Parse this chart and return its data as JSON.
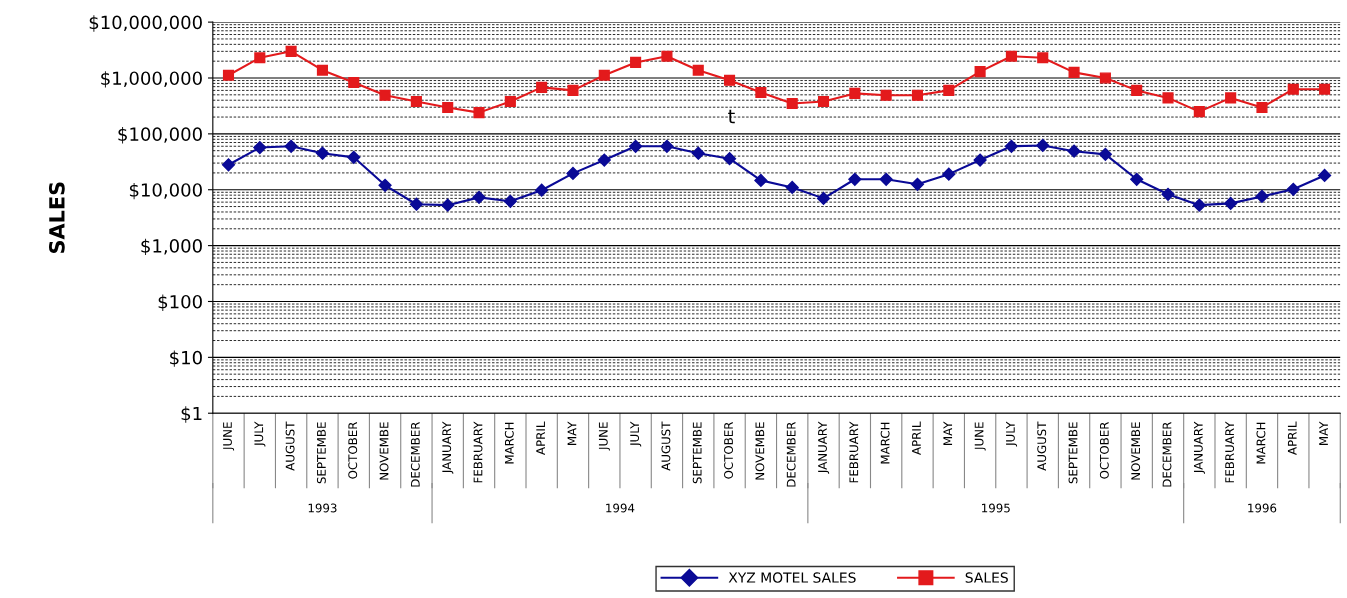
{
  "chart_data": {
    "type": "line",
    "ylabel": "SALES",
    "categories": [
      "JUNE",
      "JULY",
      "AUGUST",
      "SEPTEMBE",
      "OCTOBER",
      "NOVEMBE",
      "DECEMBER",
      "JANUARY",
      "FEBRUARY",
      "MARCH",
      "APRIL",
      "MAY",
      "JUNE",
      "JULY",
      "AUGUST",
      "SEPTEMBE",
      "OCTOBER",
      "NOVEMBE",
      "DECEMBER",
      "JANUARY",
      "FEBRUARY",
      "MARCH",
      "APRIL",
      "MAY",
      "JUNE",
      "JULY",
      "AUGUST",
      "SEPTEMBE",
      "OCTOBER",
      "NOVEMBE",
      "DECEMBER",
      "JANUARY",
      "FEBRUARY",
      "MARCH",
      "APRIL",
      "MAY"
    ],
    "series": [
      {
        "name": "XYZ MOTEL SALES",
        "color": "#0a0a96",
        "marker": "diamond",
        "values": [
          28000,
          57000,
          60000,
          45000,
          38000,
          12000,
          5500,
          5300,
          7300,
          6200,
          9800,
          19600,
          34000,
          60000,
          60000,
          45000,
          36000,
          14700,
          11000,
          7000,
          15400,
          15400,
          12500,
          19000,
          34000,
          60000,
          62000,
          49000,
          43000,
          15400,
          8300,
          5300,
          5700,
          7600,
          10200,
          18000
        ]
      },
      {
        "name": "SALES",
        "color": "#e31a1c",
        "marker": "square",
        "values": [
          1120000,
          2300000,
          3000000,
          1380000,
          830000,
          490000,
          380000,
          297000,
          240000,
          380000,
          680000,
          600000,
          1120000,
          1900000,
          2450000,
          1380000,
          910000,
          550000,
          350000,
          380000,
          530000,
          490000,
          490000,
          600000,
          1300000,
          2450000,
          2300000,
          1260000,
          1000000,
          600000,
          440000,
          250000,
          440000,
          297000,
          630000,
          630000
        ]
      }
    ],
    "log": "y",
    "ylim": [
      1,
      10000000
    ],
    "yticks": [
      {
        "value": 1,
        "label": "$1"
      },
      {
        "value": 10,
        "label": "$10"
      },
      {
        "value": 100,
        "label": "$100"
      },
      {
        "value": 1000,
        "label": "$1,000"
      },
      {
        "value": 10000,
        "label": "$10,000"
      },
      {
        "value": 100000,
        "label": "$100,000"
      },
      {
        "value": 1000000,
        "label": "$1,000,000"
      },
      {
        "value": 10000000,
        "label": "$10,000,000"
      }
    ],
    "grid": "y",
    "legend": "bottom",
    "line_style": "solid",
    "annotations": [
      "1993",
      "1994",
      "1995",
      "1996",
      "t"
    ]
  }
}
